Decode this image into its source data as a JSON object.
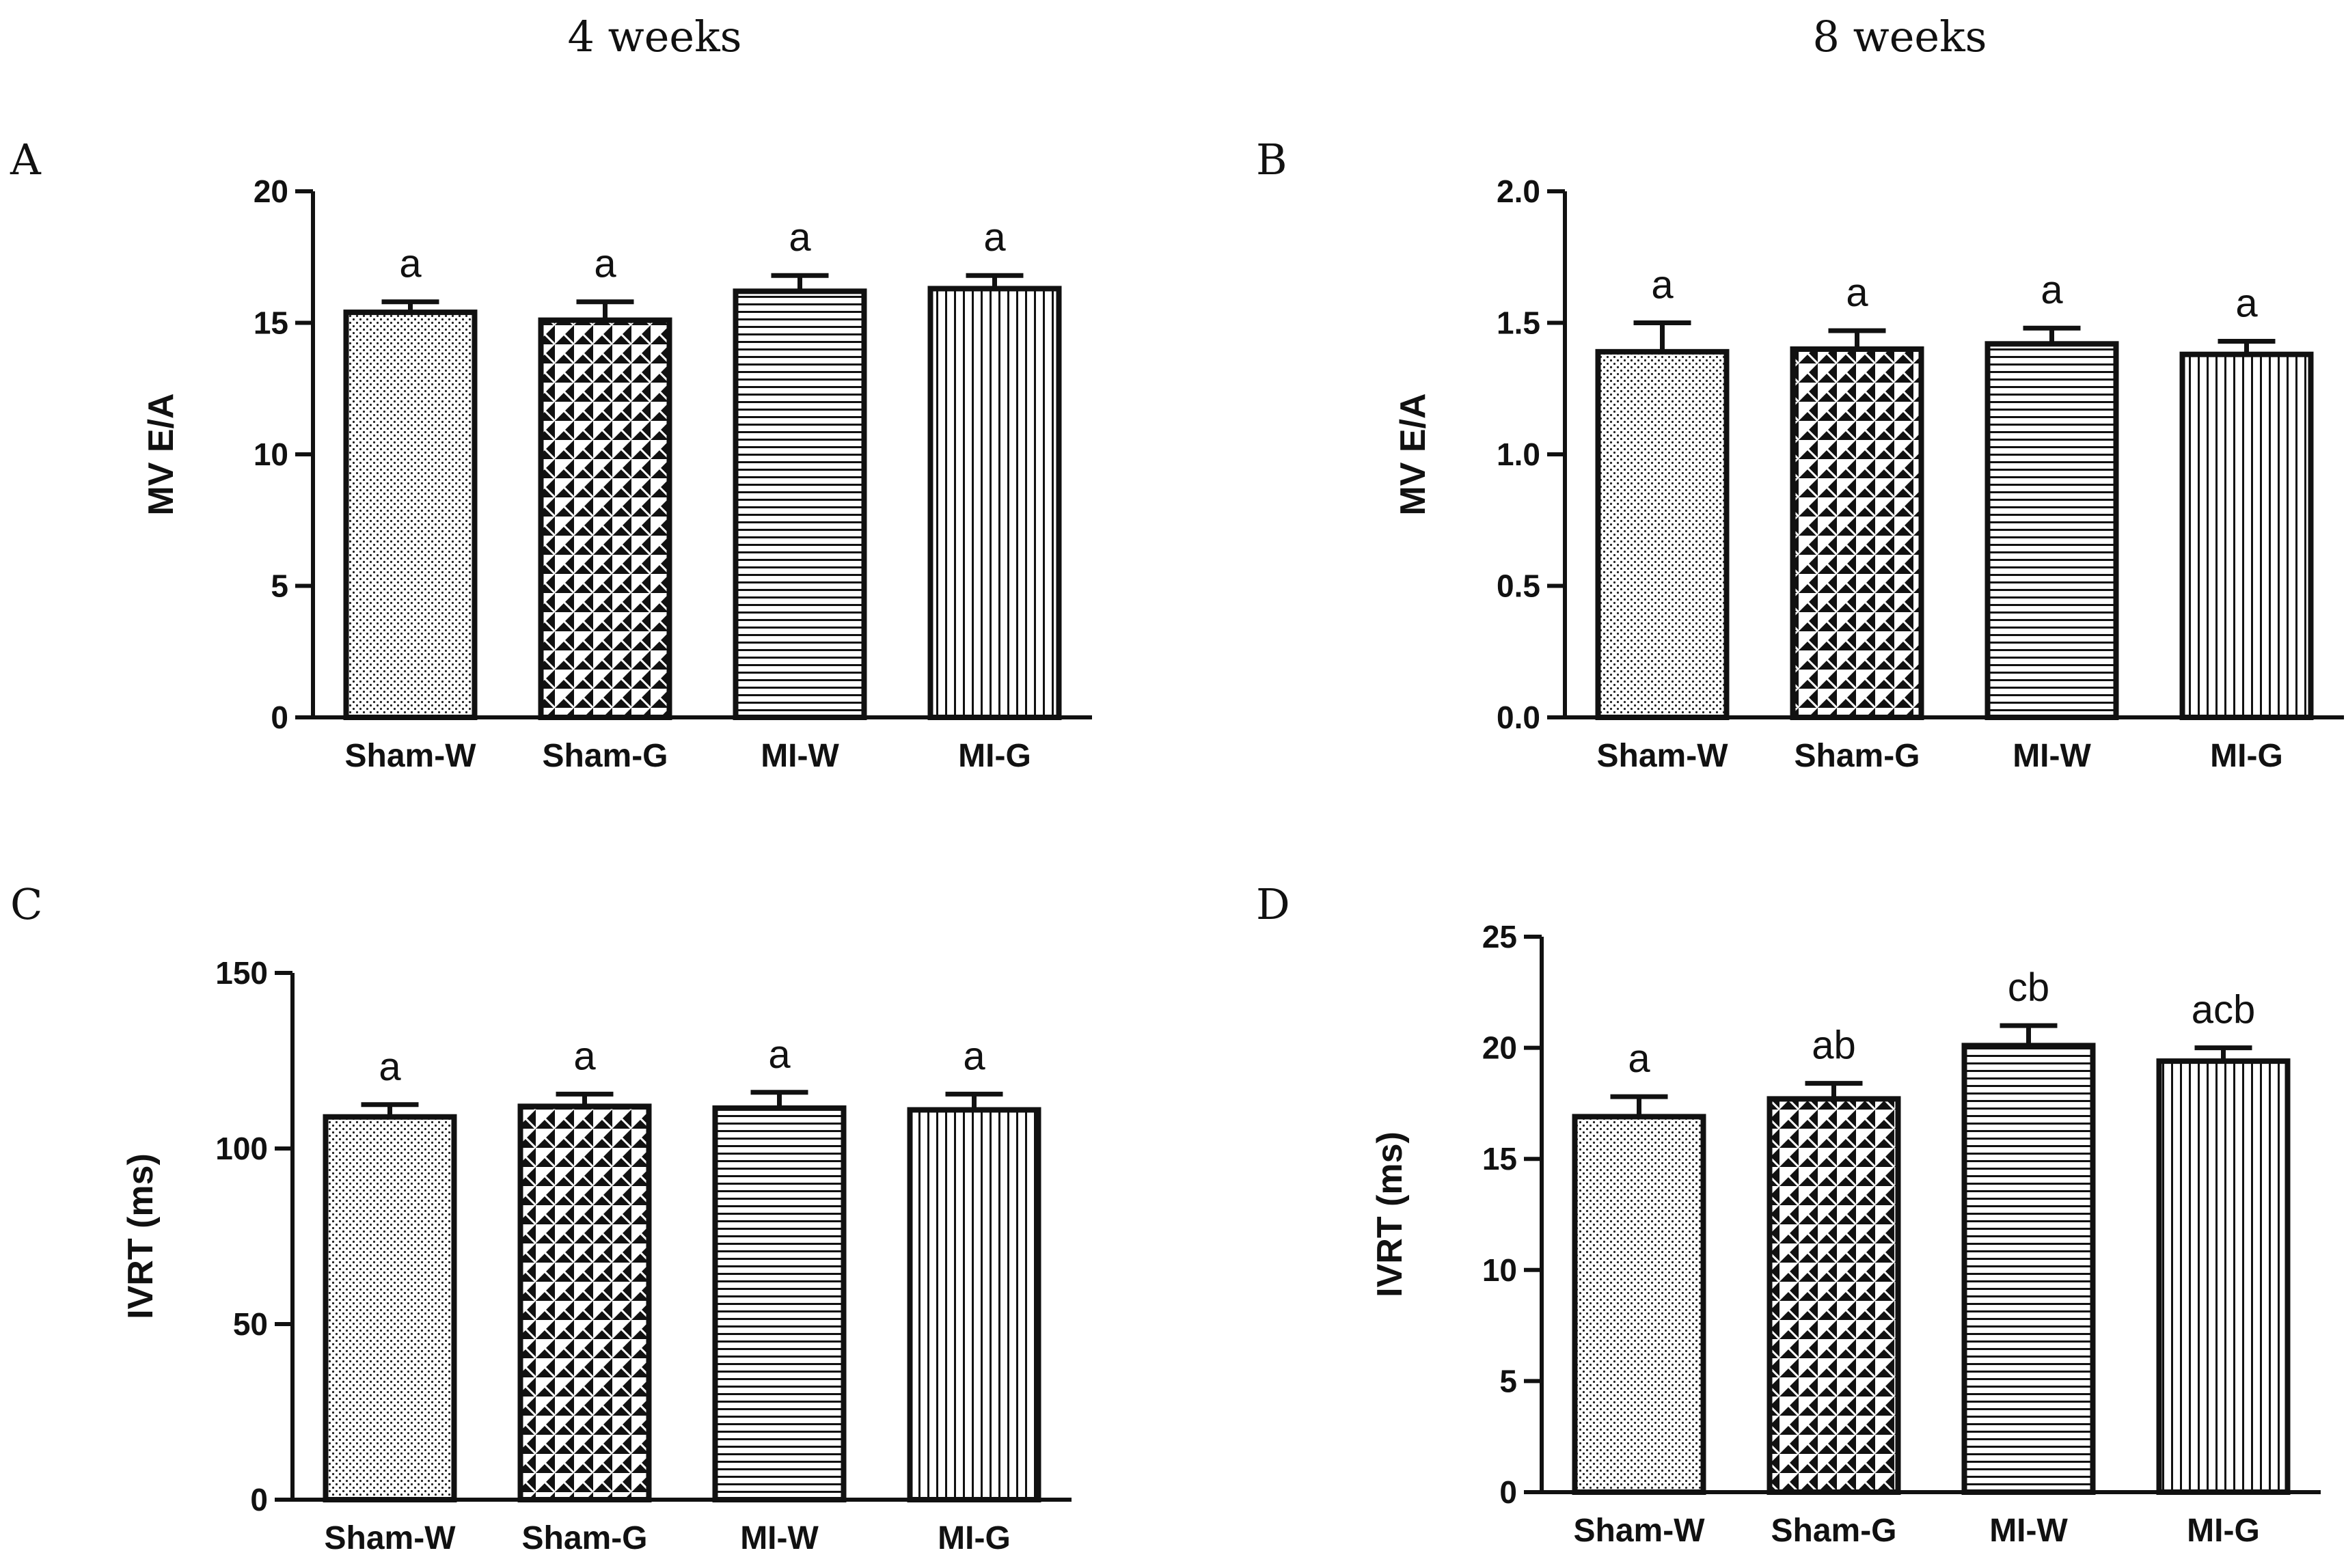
{
  "column_titles": [
    "4 weeks",
    "8 weeks"
  ],
  "chart_data": [
    {
      "panel": "A",
      "type": "bar",
      "ylabel": "MV E/A",
      "ylim": [
        0,
        20
      ],
      "yticks": [
        "0",
        "5",
        "10",
        "15",
        "20"
      ],
      "categories": [
        "Sham-W",
        "Sham-G",
        "MI-W",
        "MI-G"
      ],
      "values": [
        15.4,
        15.1,
        16.2,
        16.3
      ],
      "errors": [
        0.4,
        0.7,
        0.6,
        0.5
      ],
      "annotations": [
        "a",
        "a",
        "a",
        "a"
      ],
      "patterns": [
        "dots",
        "triangles",
        "hlines",
        "vlines"
      ]
    },
    {
      "panel": "B",
      "type": "bar",
      "ylabel": "MV E/A",
      "ylim": [
        0,
        2.0
      ],
      "yticks": [
        "0.0",
        "0.5",
        "1.0",
        "1.5",
        "2.0"
      ],
      "categories": [
        "Sham-W",
        "Sham-G",
        "MI-W",
        "MI-G"
      ],
      "values": [
        1.39,
        1.4,
        1.42,
        1.38
      ],
      "errors": [
        0.11,
        0.07,
        0.06,
        0.05
      ],
      "annotations": [
        "a",
        "a",
        "a",
        "a"
      ],
      "patterns": [
        "dots",
        "triangles",
        "hlines",
        "vlines"
      ]
    },
    {
      "panel": "C",
      "type": "bar",
      "ylabel": "IVRT (ms)",
      "ylim": [
        0,
        150
      ],
      "yticks": [
        "0",
        "50",
        "100",
        "150"
      ],
      "categories": [
        "Sham-W",
        "Sham-G",
        "MI-W",
        "MI-G"
      ],
      "values": [
        109,
        112,
        111.5,
        111
      ],
      "errors": [
        3.5,
        3.5,
        4.5,
        4.5
      ],
      "annotations": [
        "a",
        "a",
        "a",
        "a"
      ],
      "patterns": [
        "dots",
        "triangles",
        "hlines",
        "vlines"
      ]
    },
    {
      "panel": "D",
      "type": "bar",
      "ylabel": "IVRT (ms)",
      "ylim": [
        0,
        25
      ],
      "yticks": [
        "0",
        "5",
        "10",
        "15",
        "20",
        "25"
      ],
      "categories": [
        "Sham-W",
        "Sham-G",
        "MI-W",
        "MI-G"
      ],
      "values": [
        16.9,
        17.7,
        20.1,
        19.4
      ],
      "errors": [
        0.9,
        0.7,
        0.9,
        0.6
      ],
      "annotations": [
        "a",
        "ab",
        "cb",
        "acb"
      ],
      "patterns": [
        "dots",
        "triangles",
        "hlines",
        "vlines"
      ]
    }
  ]
}
